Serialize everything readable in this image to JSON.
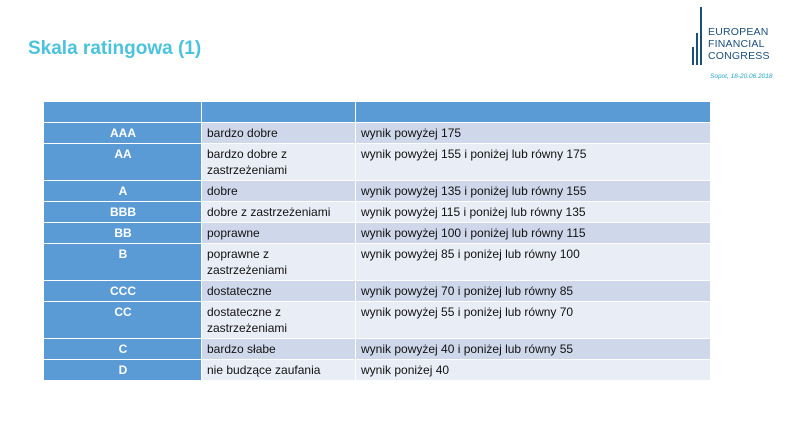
{
  "slide": {
    "title": "Skala ratingowa (1)"
  },
  "logo": {
    "line1": "EUROPEAN",
    "line2": "FINANCIAL",
    "line3": "CONGRESS",
    "place": "Sopot, 18-20.06.2018"
  },
  "table": {
    "header": [
      "",
      "",
      ""
    ],
    "rows": [
      {
        "grade": "AAA",
        "desc": "bardzo dobre",
        "range": "wynik powyżej 175"
      },
      {
        "grade": "AA",
        "desc": "bardzo dobre z zastrzeżeniami",
        "range": "wynik powyżej 155 i poniżej lub równy 175"
      },
      {
        "grade": "A",
        "desc": "dobre",
        "range": "wynik powyżej 135 i poniżej lub równy 155"
      },
      {
        "grade": "BBB",
        "desc": "dobre z zastrzeżeniami",
        "range": "wynik powyżej 115 i poniżej lub równy 135"
      },
      {
        "grade": "BB",
        "desc": "poprawne",
        "range": "wynik powyżej 100 i poniżej lub równy 115"
      },
      {
        "grade": "B",
        "desc": "poprawne z zastrzeżeniami",
        "range": "wynik powyżej 85 i poniżej lub równy 100"
      },
      {
        "grade": "CCC",
        "desc": "dostateczne",
        "range": "wynik powyżej 70 i poniżej lub równy 85"
      },
      {
        "grade": "CC",
        "desc": "dostateczne z zastrzeżeniami",
        "range": "wynik powyżej 55 i poniżej lub równy 70"
      },
      {
        "grade": "C",
        "desc": "bardzo słabe",
        "range": "wynik powyżej 40 i poniżej lub równy 55"
      },
      {
        "grade": "D",
        "desc": "nie budzące zaufania",
        "range": "wynik poniżej 40"
      }
    ]
  }
}
